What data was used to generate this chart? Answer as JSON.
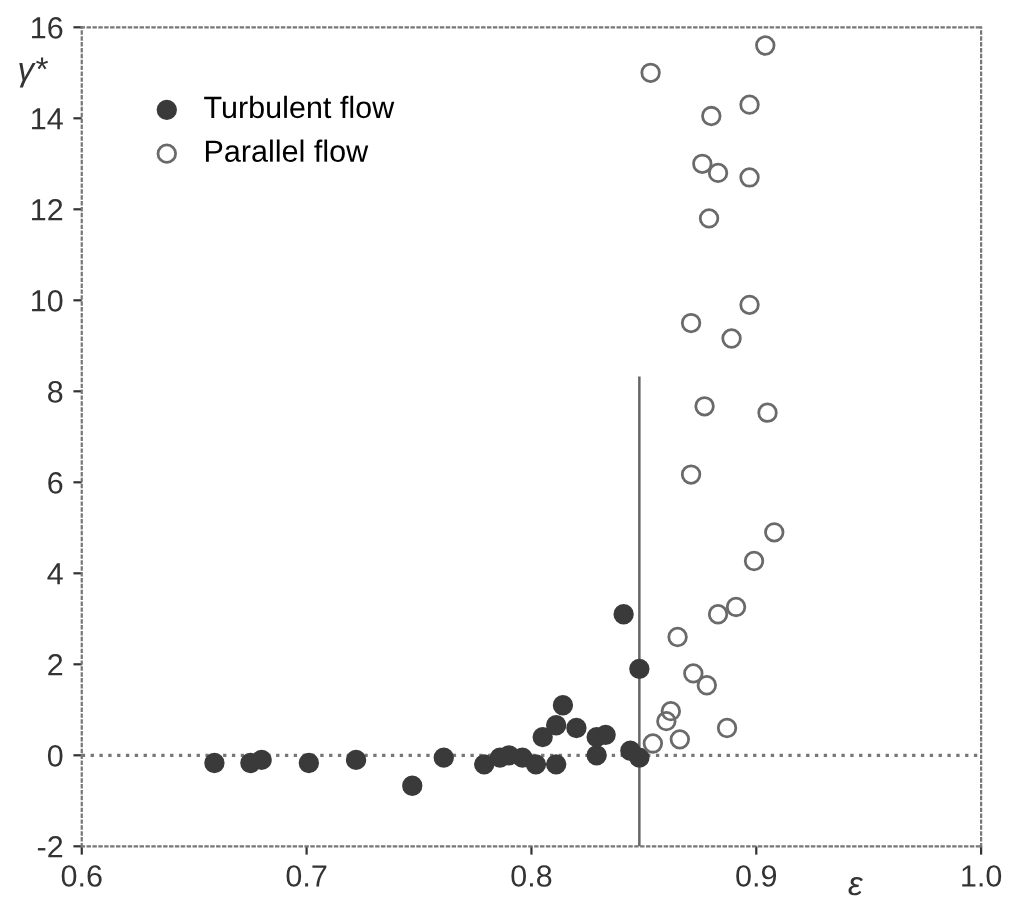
{
  "chart_data": {
    "type": "scatter",
    "xlabel": "ε",
    "ylabel": "γ*",
    "xlim": [
      0.6,
      1.0
    ],
    "ylim": [
      -2,
      16
    ],
    "xticks": [
      0.6,
      0.7,
      0.8,
      0.9,
      {
        "value": 1.0,
        "label": "1.0"
      }
    ],
    "yticks": [
      -2,
      0,
      2,
      4,
      6,
      8,
      10,
      12,
      14,
      16
    ],
    "grid": false,
    "legend": "top left",
    "marker": "circle",
    "series": [
      {
        "name": "Turbulent flow",
        "color": "#3a3a3a",
        "x": [
          0.659,
          0.675,
          0.68,
          0.701,
          0.722,
          0.747,
          0.761,
          0.779,
          0.786,
          0.79,
          0.796,
          0.802,
          0.805,
          0.811,
          0.811,
          0.814,
          0.82,
          0.829,
          0.829,
          0.833,
          0.841,
          0.844,
          0.848,
          0.848
        ],
        "values": [
          -0.17,
          -0.17,
          -0.1,
          -0.17,
          -0.1,
          -0.67,
          -0.05,
          -0.2,
          -0.05,
          0,
          -0.05,
          -0.2,
          0.4,
          0.66,
          -0.2,
          1.1,
          0.6,
          0.4,
          0,
          0.45,
          3.1,
          0.1,
          1.9,
          -0.05
        ]
      },
      {
        "name": "Parallel flow",
        "color": "#6a6a6a",
        "x": [
          0.854,
          0.866,
          0.862,
          0.86,
          0.872,
          0.878,
          0.865,
          0.887,
          0.883,
          0.891,
          0.899,
          0.908,
          0.904,
          0.853,
          0.897,
          0.88,
          0.876,
          0.883,
          0.897,
          0.879,
          0.897,
          0.871,
          0.889,
          0.877,
          0.905,
          0.871
        ],
        "values": [
          0.26,
          0.35,
          0.97,
          0.75,
          1.8,
          1.54,
          2.6,
          0.6,
          3.1,
          3.26,
          4.27,
          4.9,
          15.6,
          15.0,
          14.3,
          14.05,
          13.0,
          12.8,
          12.7,
          11.8,
          9.9,
          9.5,
          9.16,
          7.67,
          7.53,
          6.17
        ]
      },
      {
        "type": "line",
        "color": "#666666",
        "line_style": "solid",
        "marker": "none",
        "x": [
          0.848,
          0.848
        ],
        "values": [
          -2,
          8.3
        ]
      }
    ],
    "ref_lines": [
      {
        "axis": "y",
        "value": 0,
        "color": "#777777",
        "line_style": "dotted"
      }
    ]
  }
}
